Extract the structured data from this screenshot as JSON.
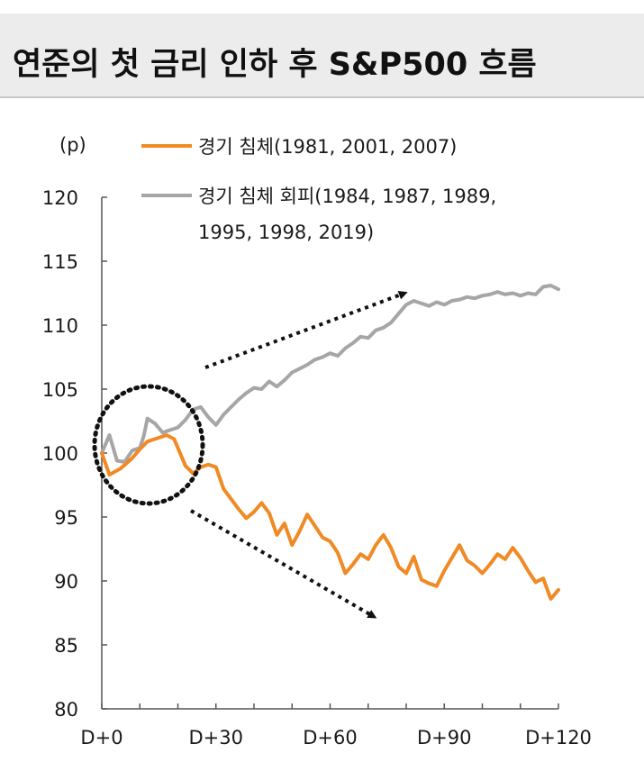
{
  "page_title": "연준의 첫 금리 인하 후 S&P500 흐름",
  "colors": {
    "recession": "#f08a24",
    "no_recession": "#a6a6a6",
    "arrow": "#111111"
  },
  "chart_data": {
    "type": "line",
    "yunit": "(p)",
    "ylim": [
      80,
      120
    ],
    "yticks": [
      80,
      85,
      90,
      95,
      100,
      105,
      110,
      115,
      120
    ],
    "xlim": [
      0,
      120
    ],
    "xticks": [
      0,
      30,
      60,
      90,
      120
    ],
    "xtick_labels": [
      "D+0",
      "D+30",
      "D+60",
      "D+90",
      "D+120"
    ],
    "grid": false,
    "legend_position": "top",
    "series": [
      {
        "name": "경기 침체(1981, 2001, 2007)",
        "color": "#f08a24",
        "points": [
          [
            0,
            100
          ],
          [
            2,
            98.3
          ],
          [
            5,
            98.8
          ],
          [
            8,
            99.6
          ],
          [
            10,
            100.3
          ],
          [
            12,
            100.9
          ],
          [
            15,
            101.2
          ],
          [
            17,
            101.4
          ],
          [
            19,
            101.1
          ],
          [
            20,
            100.4
          ],
          [
            22,
            99
          ],
          [
            24,
            98.4
          ],
          [
            26,
            98.9
          ],
          [
            28,
            99.1
          ],
          [
            30,
            98.9
          ],
          [
            32,
            97.2
          ],
          [
            34,
            96.4
          ],
          [
            36,
            95.6
          ],
          [
            38,
            94.9
          ],
          [
            40,
            95.4
          ],
          [
            42,
            96.1
          ],
          [
            44,
            95.3
          ],
          [
            46,
            93.6
          ],
          [
            48,
            94.5
          ],
          [
            50,
            92.8
          ],
          [
            52,
            93.9
          ],
          [
            54,
            95.2
          ],
          [
            56,
            94.3
          ],
          [
            58,
            93.4
          ],
          [
            60,
            93.1
          ],
          [
            62,
            92.2
          ],
          [
            64,
            90.6
          ],
          [
            66,
            91.3
          ],
          [
            68,
            92.1
          ],
          [
            70,
            91.7
          ],
          [
            72,
            92.8
          ],
          [
            74,
            93.6
          ],
          [
            76,
            92.6
          ],
          [
            78,
            91.1
          ],
          [
            80,
            90.6
          ],
          [
            82,
            91.9
          ],
          [
            84,
            90.1
          ],
          [
            86,
            89.8
          ],
          [
            88,
            89.6
          ],
          [
            90,
            90.8
          ],
          [
            92,
            91.8
          ],
          [
            94,
            92.8
          ],
          [
            96,
            91.6
          ],
          [
            98,
            91.2
          ],
          [
            100,
            90.6
          ],
          [
            102,
            91.3
          ],
          [
            104,
            92.1
          ],
          [
            106,
            91.7
          ],
          [
            108,
            92.6
          ],
          [
            110,
            91.8
          ],
          [
            112,
            90.8
          ],
          [
            114,
            89.9
          ],
          [
            116,
            90.2
          ],
          [
            118,
            88.6
          ],
          [
            120,
            89.3
          ]
        ]
      },
      {
        "name": "경기 침체 회피(1984, 1987, 1989, 1995, 1998, 2019)",
        "name_lines": [
          "경기 침체 회피(1984, 1987, 1989,",
          "1995, 1998, 2019)"
        ],
        "color": "#a6a6a6",
        "points": [
          [
            0,
            100
          ],
          [
            1,
            100.7
          ],
          [
            2,
            101.4
          ],
          [
            4,
            99.4
          ],
          [
            6,
            99.3
          ],
          [
            8,
            100.2
          ],
          [
            10,
            100.4
          ],
          [
            11,
            101.3
          ],
          [
            12,
            102.7
          ],
          [
            14,
            102.3
          ],
          [
            16,
            101.6
          ],
          [
            18,
            101.8
          ],
          [
            20,
            102
          ],
          [
            22,
            102.6
          ],
          [
            24,
            103.4
          ],
          [
            26,
            103.6
          ],
          [
            28,
            102.8
          ],
          [
            30,
            102.2
          ],
          [
            32,
            103
          ],
          [
            34,
            103.6
          ],
          [
            36,
            104.2
          ],
          [
            38,
            104.7
          ],
          [
            40,
            105.1
          ],
          [
            42,
            105
          ],
          [
            44,
            105.6
          ],
          [
            46,
            105.2
          ],
          [
            48,
            105.7
          ],
          [
            50,
            106.3
          ],
          [
            52,
            106.6
          ],
          [
            54,
            106.9
          ],
          [
            56,
            107.3
          ],
          [
            58,
            107.5
          ],
          [
            60,
            107.8
          ],
          [
            62,
            107.6
          ],
          [
            64,
            108.2
          ],
          [
            66,
            108.6
          ],
          [
            68,
            109.1
          ],
          [
            70,
            109
          ],
          [
            72,
            109.6
          ],
          [
            74,
            109.8
          ],
          [
            76,
            110.2
          ],
          [
            78,
            110.9
          ],
          [
            80,
            111.6
          ],
          [
            82,
            111.9
          ],
          [
            84,
            111.7
          ],
          [
            86,
            111.5
          ],
          [
            88,
            111.8
          ],
          [
            90,
            111.6
          ],
          [
            92,
            111.9
          ],
          [
            94,
            112
          ],
          [
            96,
            112.2
          ],
          [
            98,
            112.1
          ],
          [
            100,
            112.3
          ],
          [
            102,
            112.4
          ],
          [
            104,
            112.6
          ],
          [
            106,
            112.4
          ],
          [
            108,
            112.5
          ],
          [
            110,
            112.3
          ],
          [
            112,
            112.5
          ],
          [
            114,
            112.4
          ],
          [
            116,
            113
          ],
          [
            118,
            113.1
          ],
          [
            120,
            112.8
          ]
        ]
      }
    ]
  }
}
